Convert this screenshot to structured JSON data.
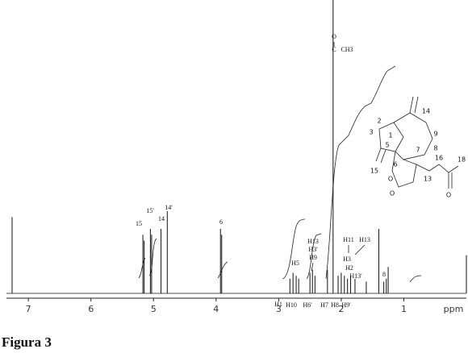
{
  "chart_data": {
    "type": "spectrum",
    "xlabel": "ppm",
    "xlim": [
      7.35,
      0
    ],
    "xticks": [
      7,
      6,
      5,
      4,
      3,
      2,
      1
    ],
    "ylim": [
      0,
      100
    ],
    "color": "#111111",
    "x": [
      7.26,
      5.17,
      5.15,
      5.05,
      5.03,
      4.88,
      4.78,
      3.93,
      3.91,
      2.82,
      2.77,
      2.72,
      2.68,
      2.5,
      2.46,
      2.42,
      2.22,
      2.13,
      2.05,
      2.0,
      1.95,
      1.9,
      1.85,
      1.78,
      1.6,
      1.4,
      1.32,
      1.28,
      1.25,
      0.0
    ],
    "values": [
      26,
      20,
      18,
      22,
      20,
      22,
      28,
      22,
      20,
      5,
      7,
      6,
      5,
      7,
      8,
      6,
      8,
      100,
      6,
      7,
      6,
      5,
      6,
      5,
      4,
      22,
      4,
      5,
      9,
      13
    ],
    "annotations": [
      "15",
      "15'",
      "14",
      "14'",
      "6",
      "H5",
      "H13",
      "H3'",
      "H9",
      "H11",
      "H13",
      "H3",
      "H2",
      "H13'",
      "8",
      "H1",
      "H10",
      "H6'",
      "H7",
      "H8",
      "H9'",
      "O",
      "C",
      "CH3"
    ],
    "structure_labels": [
      "14",
      "2",
      "9",
      "3",
      "1",
      "8",
      "5",
      "7",
      "16",
      "18",
      "15",
      "6",
      "13",
      "O",
      "O",
      "O"
    ],
    "caption": "Figura 3"
  }
}
